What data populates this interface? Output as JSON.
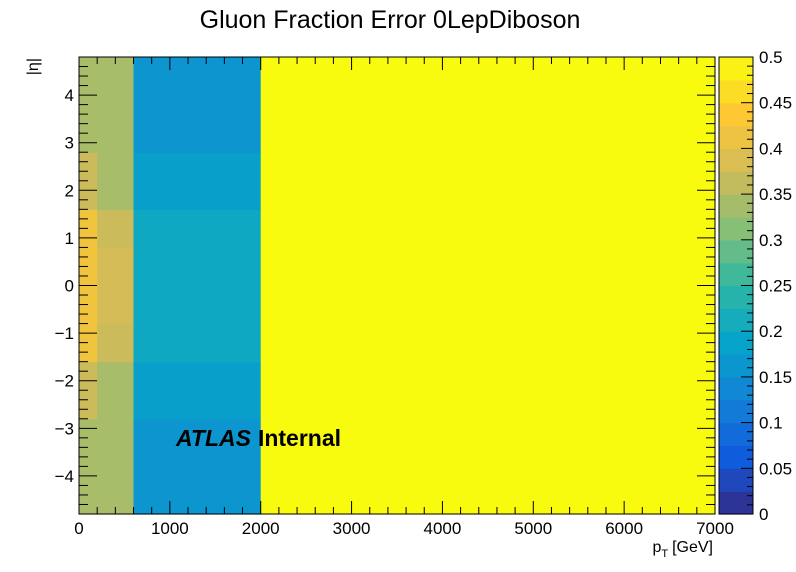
{
  "chart_data": {
    "type": "heatmap",
    "title": "Gluon Fraction Error 0LepDiboson",
    "xlabel": "p_T [GeV]",
    "xlabel_main": "p",
    "xlabel_sub": "T",
    "xlabel_unit": "[GeV]",
    "ylabel": "|η|",
    "xlim": [
      0,
      7000
    ],
    "ylim": [
      -4.8,
      4.8
    ],
    "zlim": [
      0,
      0.5
    ],
    "x_ticks": [
      "0",
      "1000",
      "2000",
      "3000",
      "4000",
      "5000",
      "6000",
      "7000"
    ],
    "y_ticks": [
      "−4",
      "−3",
      "−2",
      "−1",
      "0",
      "1",
      "2",
      "3",
      "4"
    ],
    "z_ticks": [
      "0",
      "0.05",
      "0.1",
      "0.15",
      "0.2",
      "0.25",
      "0.3",
      "0.35",
      "0.4",
      "0.45",
      "0.5"
    ],
    "x_edges": [
      0,
      200,
      600,
      2000,
      7000
    ],
    "y_edges": [
      -4.8,
      -2.8,
      -1.6,
      -0.8,
      0.8,
      1.6,
      2.8,
      4.8
    ],
    "z_values": [
      [
        0.34,
        0.34,
        0.16,
        0.5
      ],
      [
        0.37,
        0.34,
        0.18,
        0.5
      ],
      [
        0.42,
        0.37,
        0.2,
        0.5
      ],
      [
        0.42,
        0.38,
        0.2,
        0.5
      ],
      [
        0.42,
        0.37,
        0.2,
        0.5
      ],
      [
        0.37,
        0.34,
        0.18,
        0.5
      ],
      [
        0.34,
        0.34,
        0.16,
        0.5
      ]
    ],
    "annotation": {
      "bold_italic": "ATLAS",
      "normal": "Internal"
    },
    "palette": [
      "#352a87",
      "#0f5cdd",
      "#1481d6",
      "#06a4ca",
      "#2eb7a4",
      "#87bf77",
      "#d1bb59",
      "#fec832",
      "#f9fb0e"
    ],
    "grid": false,
    "legend": "colorbar-right"
  }
}
